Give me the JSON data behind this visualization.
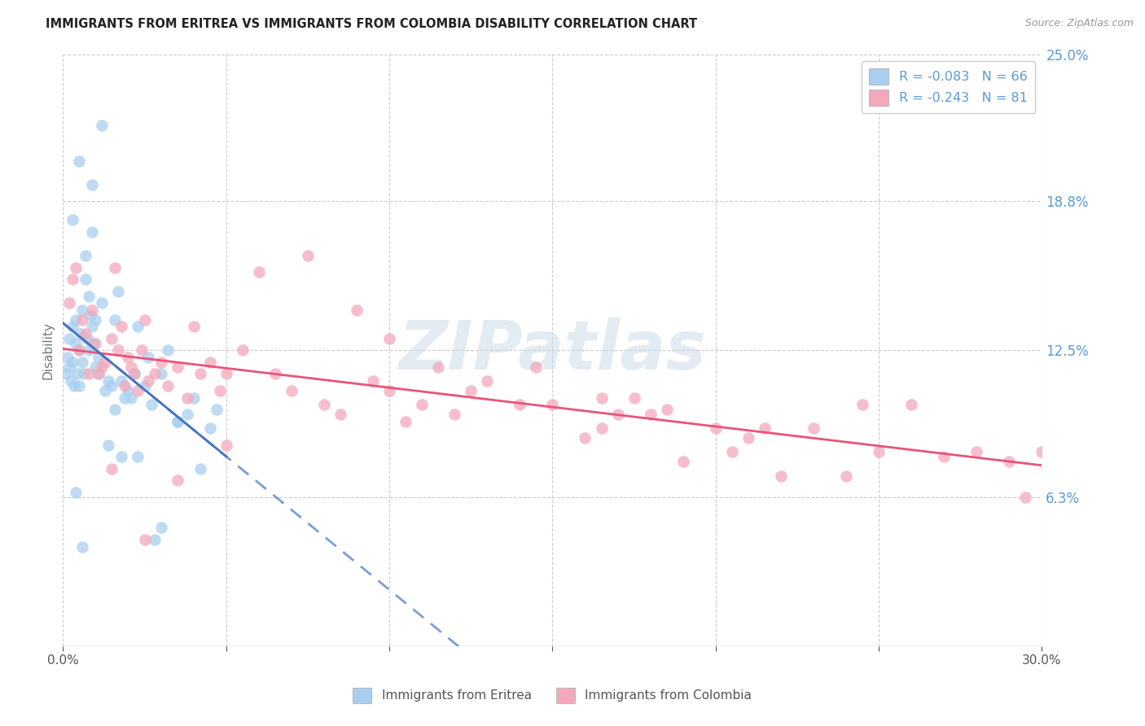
{
  "title": "IMMIGRANTS FROM ERITREA VS IMMIGRANTS FROM COLOMBIA DISABILITY CORRELATION CHART",
  "source": "Source: ZipAtlas.com",
  "ylabel": "Disability",
  "xlim": [
    0.0,
    30.0
  ],
  "ylim": [
    0.0,
    25.0
  ],
  "yticks": [
    6.3,
    12.5,
    18.8,
    25.0
  ],
  "ytick_labels": [
    "6.3%",
    "12.5%",
    "18.8%",
    "25.0%"
  ],
  "eritrea_color": "#a8cff0",
  "colombia_color": "#f4a8bc",
  "trend_eritrea_color": "#4472c4",
  "trend_colombia_color": "#e8547a",
  "label_eritrea": "Immigrants from Eritrea",
  "label_colombia": "Immigrants from Colombia",
  "watermark_text": "ZIPatlas",
  "eritrea_x": [
    0.1,
    0.15,
    0.2,
    0.2,
    0.25,
    0.3,
    0.3,
    0.35,
    0.4,
    0.4,
    0.45,
    0.5,
    0.5,
    0.55,
    0.6,
    0.6,
    0.65,
    0.7,
    0.7,
    0.75,
    0.8,
    0.8,
    0.85,
    0.9,
    0.9,
    0.95,
    1.0,
    1.0,
    1.1,
    1.1,
    1.2,
    1.3,
    1.4,
    1.5,
    1.6,
    1.7,
    1.8,
    1.9,
    2.0,
    2.2,
    2.3,
    2.5,
    2.6,
    2.7,
    3.0,
    3.2,
    3.5,
    3.8,
    4.0,
    4.5,
    4.7,
    3.5,
    0.5,
    1.2,
    2.8,
    0.9,
    1.6,
    2.1,
    1.4,
    0.4,
    3.0,
    1.8,
    4.2,
    0.6,
    2.3,
    0.3
  ],
  "eritrea_y": [
    11.5,
    12.2,
    13.0,
    11.8,
    11.2,
    13.5,
    12.0,
    11.0,
    12.8,
    13.8,
    11.5,
    12.5,
    11.0,
    13.2,
    14.2,
    12.0,
    11.5,
    15.5,
    16.5,
    13.0,
    14.8,
    12.5,
    14.0,
    17.5,
    13.5,
    12.8,
    11.8,
    13.8,
    12.2,
    11.5,
    14.5,
    10.8,
    11.2,
    11.0,
    13.8,
    15.0,
    11.2,
    10.5,
    10.8,
    11.5,
    13.5,
    11.0,
    12.2,
    10.2,
    11.5,
    12.5,
    9.5,
    9.8,
    10.5,
    9.2,
    10.0,
    9.5,
    20.5,
    22.0,
    4.5,
    19.5,
    10.0,
    10.5,
    8.5,
    6.5,
    5.0,
    8.0,
    7.5,
    4.2,
    8.0,
    18.0
  ],
  "colombia_x": [
    0.2,
    0.3,
    0.4,
    0.5,
    0.6,
    0.7,
    0.8,
    0.9,
    1.0,
    1.1,
    1.2,
    1.3,
    1.5,
    1.6,
    1.7,
    1.8,
    1.9,
    2.0,
    2.1,
    2.2,
    2.3,
    2.4,
    2.5,
    2.6,
    2.8,
    3.0,
    3.2,
    3.5,
    3.8,
    4.0,
    4.2,
    4.5,
    4.8,
    5.0,
    5.5,
    6.0,
    6.5,
    7.0,
    7.5,
    8.0,
    8.5,
    9.0,
    9.5,
    10.0,
    10.5,
    11.0,
    11.5,
    12.0,
    12.5,
    13.0,
    14.0,
    14.5,
    15.0,
    16.0,
    16.5,
    17.0,
    17.5,
    18.0,
    18.5,
    19.0,
    20.0,
    20.5,
    21.0,
    21.5,
    22.0,
    23.0,
    24.0,
    24.5,
    25.0,
    26.0,
    27.0,
    28.0,
    29.0,
    30.0,
    10.0,
    16.5,
    1.5,
    2.5,
    3.5,
    5.0,
    29.5
  ],
  "colombia_y": [
    14.5,
    15.5,
    16.0,
    12.5,
    13.8,
    13.2,
    11.5,
    14.2,
    12.8,
    11.5,
    11.8,
    12.0,
    13.0,
    16.0,
    12.5,
    13.5,
    11.0,
    12.2,
    11.8,
    11.5,
    10.8,
    12.5,
    13.8,
    11.2,
    11.5,
    12.0,
    11.0,
    11.8,
    10.5,
    13.5,
    11.5,
    12.0,
    10.8,
    11.5,
    12.5,
    15.8,
    11.5,
    10.8,
    16.5,
    10.2,
    9.8,
    14.2,
    11.2,
    10.8,
    9.5,
    10.2,
    11.8,
    9.8,
    10.8,
    11.2,
    10.2,
    11.8,
    10.2,
    8.8,
    9.2,
    9.8,
    10.5,
    9.8,
    10.0,
    7.8,
    9.2,
    8.2,
    8.8,
    9.2,
    7.2,
    9.2,
    7.2,
    10.2,
    8.2,
    10.2,
    8.0,
    8.2,
    7.8,
    8.2,
    13.0,
    10.5,
    7.5,
    4.5,
    7.0,
    8.5,
    6.3
  ]
}
